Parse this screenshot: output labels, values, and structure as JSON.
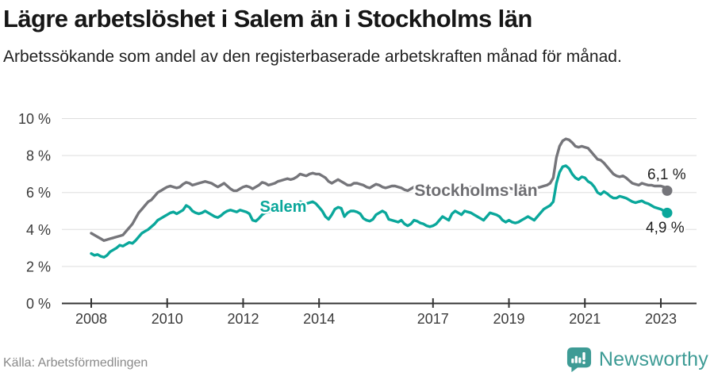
{
  "header": {
    "title": "Lägre arbetslöshet i Salem än i Stockholms län",
    "subtitle": "Arbetssökande som andel av den registerbaserade arbetskraften månad för månad."
  },
  "footer": {
    "source": "Källa: Arbetsförmedlingen",
    "brand": "Newsworthy"
  },
  "colors": {
    "salem": "#0aa79b",
    "stockholm": "#75757a",
    "axis": "#333333",
    "gridline": "#dedede",
    "brand_teal": "#3d9b95"
  },
  "chart_data": {
    "type": "line",
    "title": "Lägre arbetslöshet i Salem än i Stockholms län",
    "subtitle": "Arbetssökande som andel av den registerbaserade arbetskraften månad för månad.",
    "source": "Källa: Arbetsförmedlingen",
    "unit": "%",
    "frequency": "monthly",
    "x_start": "2008-01",
    "x_end": "2023-03",
    "ylim": [
      0,
      10
    ],
    "grid": "horizontal",
    "legend": "inline-labels",
    "y_ticks": [
      {
        "value": 0,
        "label": "0 %"
      },
      {
        "value": 2,
        "label": "2 %"
      },
      {
        "value": 4,
        "label": "4 %"
      },
      {
        "value": 6,
        "label": "6 %"
      },
      {
        "value": 8,
        "label": "8 %"
      },
      {
        "value": 10,
        "label": "10 %"
      }
    ],
    "x_ticks": [
      {
        "year": 2008,
        "label": "2008"
      },
      {
        "year": 2010,
        "label": "2010"
      },
      {
        "year": 2012,
        "label": "2012"
      },
      {
        "year": 2014,
        "label": "2014"
      },
      {
        "year": 2017,
        "label": "2017"
      },
      {
        "year": 2019,
        "label": "2019"
      },
      {
        "year": 2021,
        "label": "2021"
      },
      {
        "year": 2023,
        "label": "2023"
      }
    ],
    "series": [
      {
        "id": "stockholm",
        "name": "Stockholms län",
        "color": "#75757a",
        "end_label": "6,1 %",
        "end_value": 6.1,
        "values": [
          3.8,
          3.7,
          3.6,
          3.5,
          3.4,
          3.45,
          3.5,
          3.55,
          3.6,
          3.65,
          3.7,
          3.9,
          4.1,
          4.3,
          4.6,
          4.9,
          5.1,
          5.3,
          5.5,
          5.6,
          5.8,
          6.0,
          6.1,
          6.2,
          6.3,
          6.35,
          6.3,
          6.25,
          6.3,
          6.45,
          6.55,
          6.5,
          6.4,
          6.45,
          6.5,
          6.55,
          6.6,
          6.55,
          6.5,
          6.4,
          6.3,
          6.4,
          6.5,
          6.35,
          6.2,
          6.1,
          6.1,
          6.2,
          6.3,
          6.35,
          6.3,
          6.2,
          6.3,
          6.4,
          6.55,
          6.5,
          6.4,
          6.45,
          6.5,
          6.6,
          6.65,
          6.7,
          6.75,
          6.7,
          6.75,
          6.85,
          7.0,
          6.95,
          6.9,
          7.0,
          7.05,
          7.0,
          7.0,
          6.9,
          6.8,
          6.6,
          6.5,
          6.6,
          6.7,
          6.6,
          6.5,
          6.4,
          6.4,
          6.5,
          6.5,
          6.45,
          6.4,
          6.3,
          6.25,
          6.35,
          6.45,
          6.4,
          6.3,
          6.25,
          6.3,
          6.35,
          6.35,
          6.3,
          6.25,
          6.15,
          6.1,
          6.2,
          6.3,
          6.25,
          6.15,
          6.05,
          6.0,
          6.1,
          6.2,
          6.2,
          6.15,
          6.1,
          6.1,
          6.2,
          6.3,
          6.25,
          6.2,
          6.15,
          6.2,
          6.25,
          6.3,
          6.25,
          6.2,
          6.1,
          6.05,
          6.15,
          6.25,
          6.2,
          6.1,
          6.1,
          6.15,
          6.2,
          6.25,
          6.2,
          6.15,
          6.1,
          6.15,
          6.2,
          6.3,
          6.25,
          6.2,
          6.25,
          6.3,
          6.35,
          6.4,
          6.5,
          6.8,
          7.9,
          8.5,
          8.8,
          8.9,
          8.85,
          8.7,
          8.5,
          8.45,
          8.5,
          8.45,
          8.4,
          8.2,
          8.0,
          7.8,
          7.75,
          7.6,
          7.4,
          7.2,
          7.0,
          6.9,
          6.85,
          6.9,
          6.8,
          6.65,
          6.5,
          6.45,
          6.4,
          6.5,
          6.45,
          6.4,
          6.4,
          6.35,
          6.35,
          6.35,
          6.3,
          6.1
        ]
      },
      {
        "id": "salem",
        "name": "Salem",
        "color": "#0aa79b",
        "end_label": "4,9 %",
        "end_value": 4.9,
        "values": [
          2.7,
          2.6,
          2.65,
          2.55,
          2.5,
          2.6,
          2.8,
          2.9,
          3.0,
          3.15,
          3.1,
          3.2,
          3.3,
          3.25,
          3.4,
          3.6,
          3.8,
          3.9,
          4.0,
          4.15,
          4.3,
          4.5,
          4.6,
          4.7,
          4.8,
          4.9,
          4.95,
          4.85,
          4.95,
          5.05,
          5.3,
          5.2,
          5.0,
          4.9,
          4.85,
          4.9,
          5.0,
          4.9,
          4.8,
          4.7,
          4.65,
          4.75,
          4.9,
          5.0,
          5.05,
          5.0,
          4.95,
          5.05,
          5.0,
          4.95,
          4.85,
          4.5,
          4.45,
          4.6,
          4.8,
          4.9,
          4.95,
          5.0,
          5.05,
          5.1,
          5.15,
          5.1,
          5.2,
          5.25,
          5.2,
          5.35,
          5.5,
          5.45,
          5.4,
          5.45,
          5.5,
          5.4,
          5.2,
          5.0,
          4.7,
          4.55,
          4.8,
          5.1,
          5.2,
          5.15,
          4.7,
          4.9,
          5.0,
          5.0,
          4.95,
          4.85,
          4.6,
          4.5,
          4.45,
          4.55,
          4.8,
          4.9,
          5.0,
          4.9,
          4.55,
          4.5,
          4.45,
          4.4,
          4.5,
          4.3,
          4.2,
          4.3,
          4.5,
          4.45,
          4.35,
          4.3,
          4.2,
          4.15,
          4.2,
          4.3,
          4.5,
          4.7,
          4.6,
          4.5,
          4.85,
          5.0,
          4.9,
          4.8,
          5.0,
          4.95,
          4.9,
          4.8,
          4.7,
          4.6,
          4.5,
          4.7,
          4.9,
          4.85,
          4.8,
          4.7,
          4.5,
          4.4,
          4.5,
          4.4,
          4.35,
          4.4,
          4.5,
          4.6,
          4.7,
          4.6,
          4.5,
          4.7,
          4.9,
          5.1,
          5.2,
          5.3,
          5.5,
          6.5,
          7.1,
          7.4,
          7.45,
          7.3,
          7.0,
          6.8,
          6.7,
          6.85,
          6.8,
          6.6,
          6.5,
          6.3,
          6.0,
          5.9,
          6.05,
          5.95,
          5.8,
          5.7,
          5.7,
          5.8,
          5.75,
          5.7,
          5.6,
          5.5,
          5.45,
          5.5,
          5.55,
          5.45,
          5.4,
          5.3,
          5.2,
          5.15,
          5.1,
          5.0,
          4.9
        ]
      }
    ]
  }
}
